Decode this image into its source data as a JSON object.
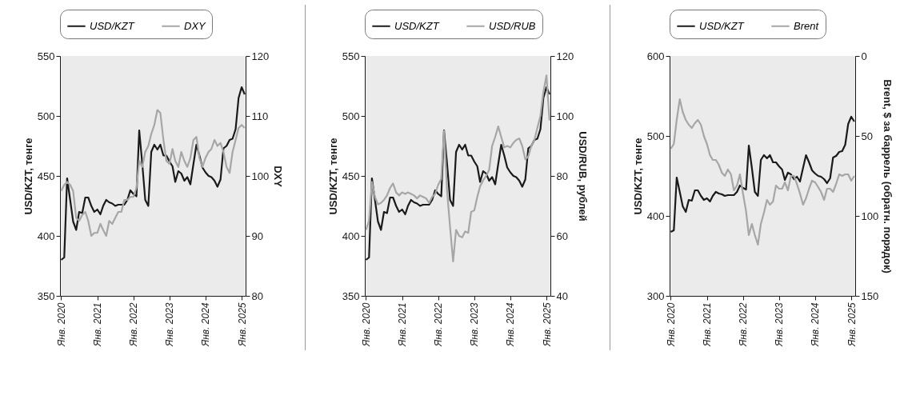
{
  "chart_data": [
    {
      "type": "line",
      "ylabel": "USD/KZT, тенге",
      "y2label": "DXY",
      "legend": "top",
      "grid": false,
      "x": [
        "2020-01",
        "2020-02",
        "2020-03",
        "2020-04",
        "2020-05",
        "2020-06",
        "2020-07",
        "2020-08",
        "2020-09",
        "2020-10",
        "2020-11",
        "2020-12",
        "2021-01",
        "2021-02",
        "2021-03",
        "2021-04",
        "2021-05",
        "2021-06",
        "2021-07",
        "2021-08",
        "2021-09",
        "2021-10",
        "2021-11",
        "2021-12",
        "2022-01",
        "2022-02",
        "2022-03",
        "2022-04",
        "2022-05",
        "2022-06",
        "2022-07",
        "2022-08",
        "2022-09",
        "2022-10",
        "2022-11",
        "2022-12",
        "2023-01",
        "2023-02",
        "2023-03",
        "2023-04",
        "2023-05",
        "2023-06",
        "2023-07",
        "2023-08",
        "2023-09",
        "2023-10",
        "2023-11",
        "2023-12",
        "2024-01",
        "2024-02",
        "2024-03",
        "2024-04",
        "2024-05",
        "2024-06",
        "2024-07",
        "2024-08",
        "2024-09",
        "2024-10",
        "2024-11",
        "2024-12",
        "2025-01",
        "2025-02"
      ],
      "xlim": [
        "2019-12-20",
        "2025-02-10"
      ],
      "xticks": [
        {
          "value": "2020-01",
          "label": "Янв. 2020"
        },
        {
          "value": "2021-01",
          "label": "Янв. 2021"
        },
        {
          "value": "2022-01",
          "label": "Янв. 2022"
        },
        {
          "value": "2023-01",
          "label": "Янв. 2023"
        },
        {
          "value": "2024-01",
          "label": "Янв. 2024"
        },
        {
          "value": "2025-01",
          "label": "Янв. 2025"
        }
      ],
      "ylim": [
        350,
        550
      ],
      "yticks": [
        350,
        400,
        450,
        500,
        550
      ],
      "y2lim": [
        80,
        120
      ],
      "y2ticks": [
        80,
        90,
        100,
        110,
        120
      ],
      "series": [
        {
          "name": "USD/KZT",
          "color": "#1a1a1a",
          "values": [
            380,
            382,
            448,
            430,
            412,
            405,
            420,
            419,
            432,
            432,
            425,
            420,
            422,
            418,
            425,
            430,
            428,
            427,
            425,
            426,
            426,
            426,
            430,
            438,
            435,
            433,
            488,
            460,
            430,
            425,
            470,
            476,
            472,
            476,
            467,
            467,
            462,
            458,
            445,
            454,
            452,
            446,
            449,
            443,
            460,
            476,
            467,
            457,
            453,
            450,
            449,
            446,
            441,
            447,
            473,
            475,
            480,
            481,
            489,
            515,
            524,
            518
          ]
        },
        {
          "name": "DXY",
          "color": "#a6a6a6",
          "axis": "y2",
          "values": [
            97.5,
            98.5,
            99,
            98.5,
            97.5,
            93,
            92.5,
            93.5,
            94,
            92.5,
            90,
            90.5,
            90.5,
            92,
            91,
            90,
            92.5,
            92,
            93,
            94,
            94,
            96,
            96,
            96.5,
            96.5,
            98,
            102.5,
            101.5,
            104,
            105,
            107,
            108.5,
            111,
            110.5,
            106,
            102.5,
            102,
            104.5,
            102.5,
            101.5,
            104,
            102.5,
            101.5,
            103,
            106,
            106.5,
            103,
            101.5,
            103,
            104,
            104.5,
            106,
            105,
            105.5,
            104,
            101.5,
            100.5,
            104,
            106,
            108,
            108.5,
            108
          ]
        }
      ]
    },
    {
      "type": "line",
      "ylabel": "USD/KZT, тенге",
      "y2label": "USD/RUB, рублей",
      "legend": "top",
      "grid": false,
      "x": [
        "2020-01",
        "2020-02",
        "2020-03",
        "2020-04",
        "2020-05",
        "2020-06",
        "2020-07",
        "2020-08",
        "2020-09",
        "2020-10",
        "2020-11",
        "2020-12",
        "2021-01",
        "2021-02",
        "2021-03",
        "2021-04",
        "2021-05",
        "2021-06",
        "2021-07",
        "2021-08",
        "2021-09",
        "2021-10",
        "2021-11",
        "2021-12",
        "2022-01",
        "2022-02",
        "2022-03",
        "2022-04",
        "2022-05",
        "2022-06",
        "2022-07",
        "2022-08",
        "2022-09",
        "2022-10",
        "2022-11",
        "2022-12",
        "2023-01",
        "2023-02",
        "2023-03",
        "2023-04",
        "2023-05",
        "2023-06",
        "2023-07",
        "2023-08",
        "2023-09",
        "2023-10",
        "2023-11",
        "2023-12",
        "2024-01",
        "2024-02",
        "2024-03",
        "2024-04",
        "2024-05",
        "2024-06",
        "2024-07",
        "2024-08",
        "2024-09",
        "2024-10",
        "2024-11",
        "2024-12",
        "2025-01",
        "2025-02"
      ],
      "xlim": [
        "2019-12-20",
        "2025-02-10"
      ],
      "xticks": [
        {
          "value": "2020-01",
          "label": "Янв. 2020"
        },
        {
          "value": "2021-01",
          "label": "Янв. 2021"
        },
        {
          "value": "2022-01",
          "label": "Янв. 2022"
        },
        {
          "value": "2023-01",
          "label": "Янв. 2023"
        },
        {
          "value": "2024-01",
          "label": "Янв. 2024"
        },
        {
          "value": "2025-01",
          "label": "Янв. 2025"
        }
      ],
      "ylim": [
        350,
        550
      ],
      "yticks": [
        350,
        400,
        450,
        500,
        550
      ],
      "y2lim": [
        40,
        120
      ],
      "y2ticks": [
        40,
        60,
        80,
        100,
        120
      ],
      "series": [
        {
          "name": "USD/KZT",
          "color": "#1a1a1a",
          "values": [
            380,
            382,
            448,
            430,
            412,
            405,
            420,
            419,
            432,
            432,
            425,
            420,
            422,
            418,
            425,
            430,
            428,
            427,
            425,
            426,
            426,
            426,
            430,
            438,
            435,
            433,
            488,
            460,
            430,
            425,
            470,
            476,
            472,
            476,
            467,
            467,
            462,
            458,
            445,
            454,
            452,
            446,
            449,
            443,
            460,
            476,
            467,
            457,
            453,
            450,
            449,
            446,
            441,
            447,
            473,
            475,
            480,
            481,
            489,
            515,
            524,
            518
          ]
        },
        {
          "name": "USD/RUB",
          "color": "#a6a6a6",
          "axis": "y2",
          "values": [
            62,
            65,
            78,
            73,
            70.5,
            71,
            72,
            73.5,
            76,
            77.5,
            74.5,
            73.5,
            74.5,
            74,
            74.5,
            74,
            73.5,
            72.5,
            73.5,
            73,
            72.5,
            71,
            73,
            74,
            77,
            79,
            95,
            75,
            63,
            51.5,
            62,
            60,
            59.5,
            61.5,
            61,
            68,
            68.5,
            73,
            76.5,
            78.5,
            80,
            82,
            90,
            93,
            96.5,
            93,
            89.5,
            90,
            89.5,
            91,
            92,
            92.5,
            90,
            85.5,
            86.5,
            90,
            92,
            96,
            100,
            108,
            113.5,
            98.5
          ]
        }
      ]
    },
    {
      "type": "line",
      "ylabel": "USD/KZT, тенге",
      "y2label": "Brent, $ за баррель (обратн. порядок)",
      "legend": "top",
      "grid": false,
      "x": [
        "2020-01",
        "2020-02",
        "2020-03",
        "2020-04",
        "2020-05",
        "2020-06",
        "2020-07",
        "2020-08",
        "2020-09",
        "2020-10",
        "2020-11",
        "2020-12",
        "2021-01",
        "2021-02",
        "2021-03",
        "2021-04",
        "2021-05",
        "2021-06",
        "2021-07",
        "2021-08",
        "2021-09",
        "2021-10",
        "2021-11",
        "2021-12",
        "2022-01",
        "2022-02",
        "2022-03",
        "2022-04",
        "2022-05",
        "2022-06",
        "2022-07",
        "2022-08",
        "2022-09",
        "2022-10",
        "2022-11",
        "2022-12",
        "2023-01",
        "2023-02",
        "2023-03",
        "2023-04",
        "2023-05",
        "2023-06",
        "2023-07",
        "2023-08",
        "2023-09",
        "2023-10",
        "2023-11",
        "2023-12",
        "2024-01",
        "2024-02",
        "2024-03",
        "2024-04",
        "2024-05",
        "2024-06",
        "2024-07",
        "2024-08",
        "2024-09",
        "2024-10",
        "2024-11",
        "2024-12",
        "2025-01",
        "2025-02"
      ],
      "xlim": [
        "2019-12-20",
        "2025-02-10"
      ],
      "xticks": [
        {
          "value": "2020-01",
          "label": "Янв. 2020"
        },
        {
          "value": "2021-01",
          "label": "Янв. 2021"
        },
        {
          "value": "2022-01",
          "label": "Янв. 2022"
        },
        {
          "value": "2023-01",
          "label": "Янв. 2023"
        },
        {
          "value": "2024-01",
          "label": "Янв. 2024"
        },
        {
          "value": "2025-01",
          "label": "Янв. 2025"
        }
      ],
      "ylim": [
        300,
        600
      ],
      "yticks": [
        300,
        400,
        500,
        600
      ],
      "y2lim": [
        150,
        0
      ],
      "y2ticks": [
        0,
        50,
        100,
        150
      ],
      "series": [
        {
          "name": "USD/KZT",
          "color": "#1a1a1a",
          "values": [
            380,
            382,
            448,
            430,
            412,
            405,
            420,
            419,
            432,
            432,
            425,
            420,
            422,
            418,
            425,
            430,
            428,
            427,
            425,
            426,
            426,
            426,
            430,
            438,
            435,
            433,
            488,
            460,
            430,
            425,
            470,
            476,
            472,
            476,
            467,
            467,
            462,
            458,
            445,
            454,
            452,
            446,
            449,
            443,
            460,
            476,
            467,
            457,
            453,
            450,
            449,
            446,
            441,
            447,
            473,
            475,
            480,
            481,
            489,
            515,
            524,
            518
          ]
        },
        {
          "name": "Brent",
          "color": "#a6a6a6",
          "axis": "y2",
          "values": [
            58,
            55,
            40,
            27,
            35,
            40,
            43,
            45,
            42,
            40,
            43,
            50,
            55,
            62,
            65,
            65,
            68,
            73,
            75,
            71,
            74,
            84,
            81,
            74,
            86,
            97,
            112,
            105,
            112,
            118,
            105,
            98,
            90,
            93,
            91,
            81,
            83,
            83,
            79,
            84,
            75,
            75,
            80,
            86,
            93,
            89,
            83,
            78,
            79,
            82,
            85,
            90,
            83,
            83,
            85,
            80,
            74,
            75,
            74,
            74,
            78,
            75
          ]
        }
      ]
    }
  ]
}
